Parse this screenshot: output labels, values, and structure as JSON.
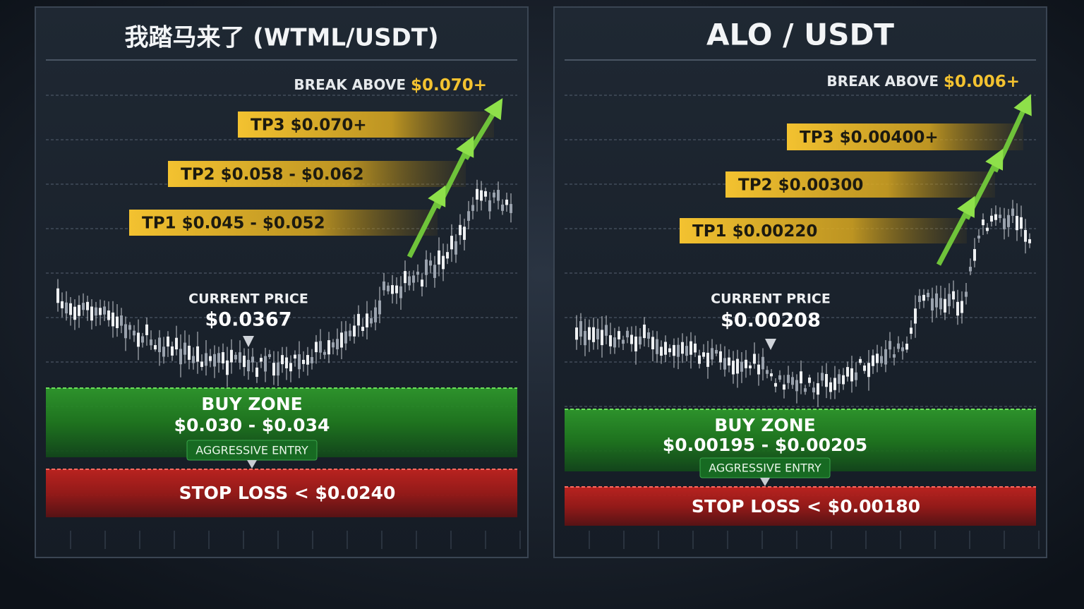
{
  "panels": [
    {
      "title": "我踏马来了 (WTML/USDT)",
      "break_above": {
        "label": "BREAK ABOVE",
        "value": "$0.070+"
      },
      "targets": [
        {
          "label": "TP3",
          "value": "$0.070+"
        },
        {
          "label": "TP2",
          "value": "$0.058 - $0.062"
        },
        {
          "label": "TP1",
          "value": "$0.045 - $0.052"
        }
      ],
      "current_price": {
        "label": "CURRENT PRICE",
        "value": "$0.0367"
      },
      "buy_zone": {
        "label": "BUY ZONE",
        "value": "$0.030 - $0.034",
        "note": "AGGRESSIVE ENTRY"
      },
      "stop_loss": "STOP LOSS < $0.0240"
    },
    {
      "title": "ALO / USDT",
      "break_above": {
        "label": "BREAK ABOVE",
        "value": "$0.006+"
      },
      "targets": [
        {
          "label": "TP3",
          "value": "$0.00400+"
        },
        {
          "label": "TP2",
          "value": "$0.00300"
        },
        {
          "label": "TP1",
          "value": "$0.00220"
        }
      ],
      "current_price": {
        "label": "CURRENT PRICE",
        "value": "$0.00208"
      },
      "buy_zone": {
        "label": "BUY ZONE",
        "value": "$0.00195 - $0.00205",
        "note": "AGGRESSIVE ENTRY"
      },
      "stop_loss": "STOP LOSS < $0.00180"
    }
  ]
}
